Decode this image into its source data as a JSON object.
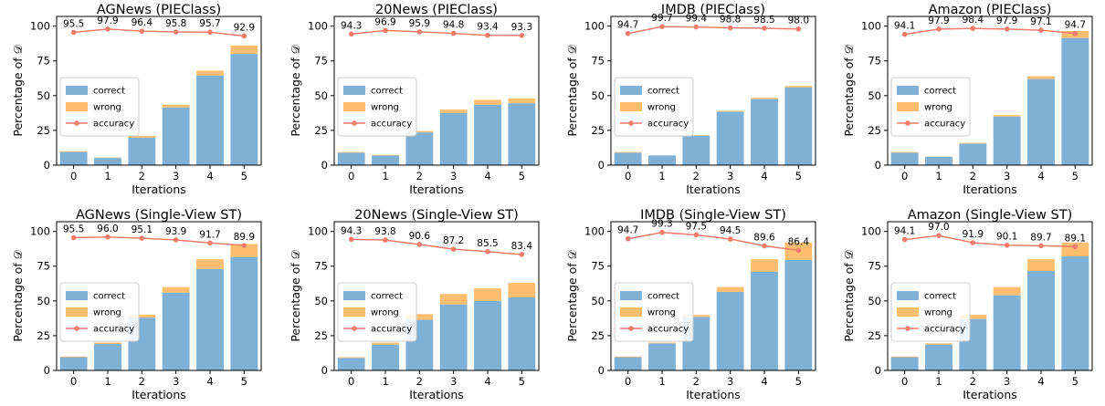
{
  "common": {
    "xlabel": "Iterations",
    "ylabel": "Percentage of 𝒟",
    "ylim": [
      0,
      107
    ],
    "yticks": [
      0,
      25,
      50,
      75,
      100
    ],
    "categories": [
      "0",
      "1",
      "2",
      "3",
      "4",
      "5"
    ],
    "legend": [
      "correct",
      "wrong",
      "accuracy"
    ],
    "legend_position": "center-left",
    "colors": {
      "correct": "#7fb0d5",
      "wrong": "#fdbf6f",
      "accuracy": "#f07c6c"
    }
  },
  "chart_data": [
    {
      "type": "bar",
      "title": "AGNews (PIEClass)",
      "series": [
        {
          "name": "correct",
          "values": [
            9.5,
            5.2,
            19.8,
            41.5,
            64.5,
            80
          ]
        },
        {
          "name": "wrong",
          "values": [
            0.5,
            0.3,
            1.2,
            2.0,
            3.5,
            6
          ]
        },
        {
          "name": "accuracy",
          "values": [
            95.5,
            97.9,
            96.4,
            95.8,
            95.7,
            92.9
          ]
        }
      ]
    },
    {
      "type": "bar",
      "title": "20News (PIEClass)",
      "series": [
        {
          "name": "correct",
          "values": [
            9.0,
            7.0,
            23.5,
            37.5,
            43.5,
            44.5
          ]
        },
        {
          "name": "wrong",
          "values": [
            0.5,
            0.4,
            1.0,
            2.5,
            3.5,
            3.5
          ]
        },
        {
          "name": "accuracy",
          "values": [
            94.3,
            96.9,
            95.9,
            94.8,
            93.4,
            93.3
          ]
        }
      ]
    },
    {
      "type": "bar",
      "title": "IMDB (PIEClass)",
      "series": [
        {
          "name": "correct",
          "values": [
            9.0,
            7.0,
            21.0,
            38.5,
            47.5,
            56
          ]
        },
        {
          "name": "wrong",
          "values": [
            0.5,
            0.0,
            0.5,
            0.5,
            1.0,
            1.0
          ]
        },
        {
          "name": "accuracy",
          "values": [
            94.7,
            99.7,
            99.4,
            98.8,
            98.5,
            98.0
          ]
        }
      ]
    },
    {
      "type": "bar",
      "title": "Amazon (PIEClass)",
      "series": [
        {
          "name": "correct",
          "values": [
            9.0,
            6.0,
            15.5,
            35.0,
            62.0,
            91.5
          ]
        },
        {
          "name": "wrong",
          "values": [
            0.5,
            0.2,
            0.5,
            1.0,
            2.0,
            5.0
          ]
        },
        {
          "name": "accuracy",
          "values": [
            94.1,
            97.9,
            98.4,
            97.9,
            97.1,
            94.7
          ]
        }
      ]
    },
    {
      "type": "bar",
      "title": "AGNews (Single-View ST)",
      "series": [
        {
          "name": "correct",
          "values": [
            9.5,
            19.0,
            38.0,
            56.0,
            73.0,
            81.5
          ]
        },
        {
          "name": "wrong",
          "values": [
            0.5,
            1.0,
            2.0,
            4.0,
            7.0,
            9.5
          ]
        },
        {
          "name": "accuracy",
          "values": [
            95.5,
            96.0,
            95.1,
            93.9,
            91.7,
            89.9
          ]
        }
      ]
    },
    {
      "type": "bar",
      "title": "20News (Single-View ST)",
      "series": [
        {
          "name": "correct",
          "values": [
            9.0,
            18.5,
            36.5,
            47.5,
            50.0,
            52.5
          ]
        },
        {
          "name": "wrong",
          "values": [
            0.5,
            1.5,
            4.0,
            7.5,
            9.0,
            10.5
          ]
        },
        {
          "name": "accuracy",
          "values": [
            94.3,
            93.8,
            90.6,
            87.2,
            85.5,
            83.4
          ]
        }
      ]
    },
    {
      "type": "bar",
      "title": "IMDB (Single-View ST)",
      "series": [
        {
          "name": "correct",
          "values": [
            9.5,
            19.5,
            38.5,
            56.5,
            71.0,
            79.5
          ]
        },
        {
          "name": "wrong",
          "values": [
            0.5,
            0.5,
            1.5,
            3.5,
            9.0,
            12.5
          ]
        },
        {
          "name": "accuracy",
          "values": [
            94.7,
            99.3,
            97.5,
            94.5,
            89.6,
            86.4
          ]
        }
      ]
    },
    {
      "type": "bar",
      "title": "Amazon (Single-View ST)",
      "series": [
        {
          "name": "correct",
          "values": [
            9.5,
            18.5,
            37.0,
            54.0,
            71.5,
            82.0
          ]
        },
        {
          "name": "wrong",
          "values": [
            0.5,
            1.0,
            3.0,
            6.0,
            8.5,
            10.0
          ]
        },
        {
          "name": "accuracy",
          "values": [
            94.1,
            97.0,
            91.9,
            90.1,
            89.7,
            89.1
          ]
        }
      ]
    }
  ]
}
